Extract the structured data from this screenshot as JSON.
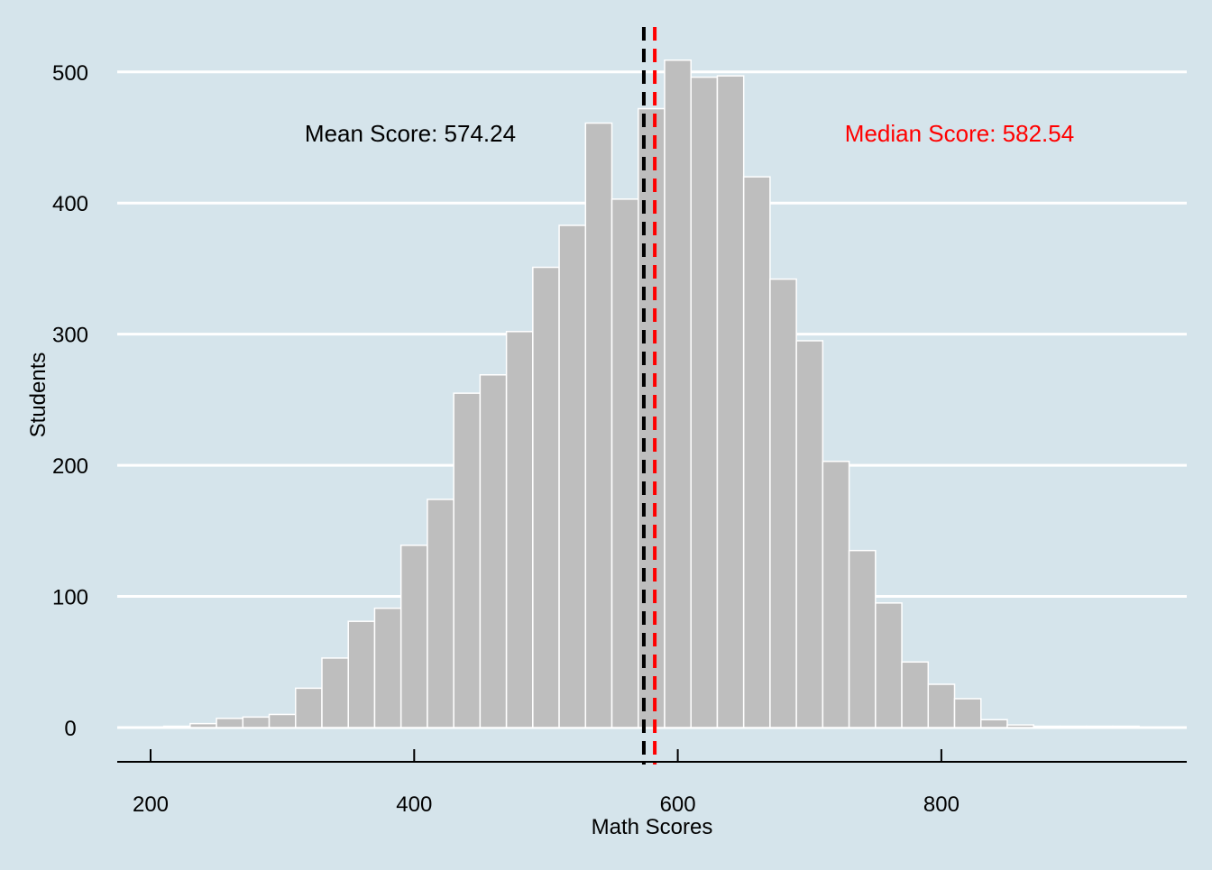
{
  "chart_data": {
    "type": "bar",
    "subtype": "histogram",
    "xlabel": "Math Scores",
    "ylabel": "Students",
    "xticks": [
      200,
      400,
      600,
      800
    ],
    "yticks": [
      0,
      100,
      200,
      300,
      400,
      500
    ],
    "xlim": [
      175,
      975
    ],
    "ylim": [
      0,
      535
    ],
    "bin_width": 20,
    "bins_start": [
      210,
      230,
      250,
      270,
      290,
      310,
      330,
      350,
      370,
      390,
      410,
      430,
      450,
      470,
      490,
      510,
      530,
      550,
      570,
      590,
      610,
      630,
      650,
      670,
      690,
      710,
      730,
      750,
      770,
      790,
      810,
      830,
      850,
      870,
      890,
      910,
      930
    ],
    "counts": [
      1,
      3,
      7,
      8,
      10,
      30,
      53,
      81,
      91,
      139,
      174,
      255,
      269,
      302,
      351,
      383,
      461,
      403,
      472,
      509,
      496,
      497,
      420,
      342,
      295,
      203,
      135,
      95,
      50,
      33,
      22,
      6,
      2,
      1,
      1,
      1,
      1
    ],
    "grid": "horizontal",
    "legend": "none",
    "reference_lines": [
      {
        "label": "Mean Score: 574.24",
        "value": 574.24,
        "color": "#000000",
        "style": "dashed"
      },
      {
        "label": "Median Score: 582.54",
        "value": 582.54,
        "color": "#ff0000",
        "style": "dashed"
      }
    ],
    "colors": {
      "background": "#d5e4eb",
      "bar_fill": "#bebebe",
      "bar_stroke": "#ffffff",
      "grid": "#ffffff",
      "mean_line": "#000000",
      "median_line": "#ff0000"
    }
  }
}
